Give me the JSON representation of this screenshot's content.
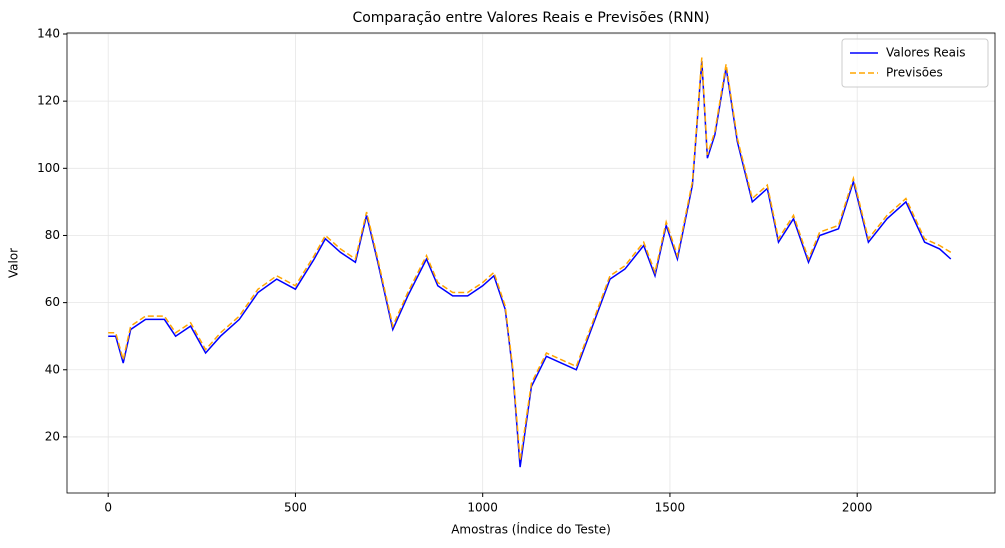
{
  "chart_data": {
    "type": "line",
    "title": "Comparação entre Valores Reais e Previsões (RNN)",
    "xlabel": "Amostras (Índice do Teste)",
    "ylabel": "Valor",
    "x": [
      0,
      20,
      40,
      60,
      100,
      150,
      180,
      220,
      260,
      300,
      350,
      400,
      450,
      500,
      550,
      580,
      620,
      660,
      690,
      720,
      760,
      800,
      850,
      880,
      920,
      960,
      1000,
      1030,
      1060,
      1080,
      1100,
      1130,
      1170,
      1210,
      1250,
      1300,
      1340,
      1380,
      1430,
      1460,
      1490,
      1520,
      1560,
      1585,
      1600,
      1620,
      1650,
      1680,
      1720,
      1760,
      1790,
      1830,
      1870,
      1900,
      1950,
      1990,
      2030,
      2080,
      2130,
      2180,
      2220,
      2250
    ],
    "series": [
      {
        "name": "Valores Reais",
        "color": "#0000ff",
        "dashed": false,
        "values": [
          50,
          50,
          42,
          52,
          55,
          55,
          50,
          53,
          45,
          50,
          55,
          63,
          67,
          64,
          73,
          79,
          75,
          72,
          86,
          72,
          52,
          62,
          73,
          65,
          62,
          62,
          65,
          68,
          58,
          40,
          11,
          35,
          44,
          42,
          40,
          55,
          67,
          70,
          77,
          68,
          83,
          73,
          95,
          132,
          103,
          110,
          130,
          108,
          90,
          94,
          78,
          85,
          72,
          80,
          82,
          96,
          78,
          85,
          90,
          78,
          76,
          73
        ]
      },
      {
        "name": "Previsões",
        "color": "#ffa500",
        "dashed": true,
        "values": [
          51,
          51,
          43,
          53,
          56,
          56,
          51,
          54,
          46,
          51,
          56,
          64,
          68,
          65,
          74,
          80,
          76,
          73,
          87,
          73,
          53,
          63,
          74,
          66,
          63,
          63,
          66,
          69,
          59,
          41,
          13,
          36,
          45,
          43,
          41,
          56,
          68,
          71,
          78,
          69,
          84,
          74,
          96,
          133,
          104,
          111,
          131,
          109,
          91,
          95,
          79,
          86,
          73,
          81,
          83,
          97,
          79,
          86,
          91,
          79,
          77,
          75
        ]
      }
    ],
    "xlim": [
      -110,
      2368
    ],
    "xticks": [
      0,
      500,
      1000,
      1500,
      2000
    ],
    "ylim": [
      3.3,
      140.3
    ],
    "yticks": [
      20,
      40,
      60,
      80,
      100,
      120,
      140
    ],
    "grid": true,
    "legend": "upper right"
  }
}
